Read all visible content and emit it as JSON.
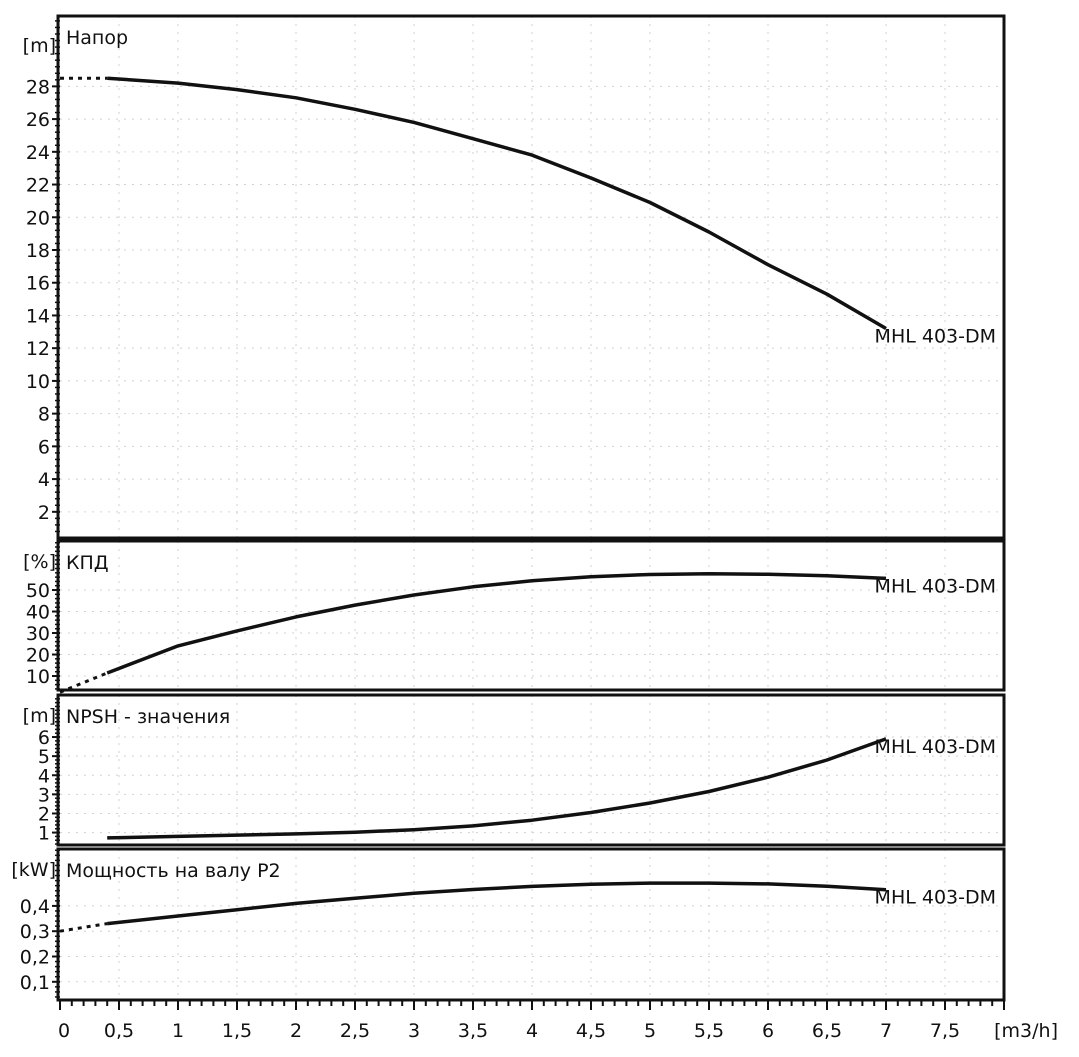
{
  "chart_data": [
    {
      "type": "line",
      "title": "Напор",
      "ylabel": "[m]",
      "ylim": [
        0.4,
        32.3
      ],
      "yticks": [
        2,
        4,
        6,
        8,
        10,
        12,
        14,
        16,
        18,
        20,
        22,
        24,
        26,
        28
      ],
      "series": [
        {
          "name": "MHL 403-DM",
          "x": [
            0.4,
            1,
            1.5,
            2,
            2.5,
            3,
            3.5,
            4,
            4.5,
            5,
            5.5,
            6,
            6.5,
            7
          ],
          "y": [
            28.5,
            28.2,
            27.8,
            27.3,
            26.6,
            25.8,
            24.8,
            23.8,
            22.4,
            20.9,
            19.1,
            17.1,
            15.3,
            13.2
          ]
        },
        {
          "name": "extrapolated",
          "style": "dotted",
          "x": [
            0,
            0.4
          ],
          "y": [
            28.5,
            28.5
          ]
        }
      ],
      "curve_label": "MHL 403-DM"
    },
    {
      "type": "line",
      "title": "КПД",
      "ylabel": "[%]",
      "ylim": [
        3.5,
        72.8
      ],
      "yticks": [
        10,
        20,
        30,
        40,
        50
      ],
      "series": [
        {
          "name": "MHL 403-DM",
          "x": [
            0.4,
            1,
            1.5,
            2,
            2.5,
            3,
            3.5,
            4,
            4.5,
            5,
            5.5,
            6,
            6.5,
            7
          ],
          "y": [
            11.4,
            24,
            31,
            37.5,
            43,
            47.7,
            51.5,
            54.3,
            56.2,
            57.2,
            57.6,
            57.3,
            56.6,
            55.4
          ]
        },
        {
          "name": "extrapolated",
          "style": "dotted",
          "x": [
            0,
            0.4
          ],
          "y": [
            2.5,
            11.4
          ]
        }
      ],
      "curve_label": "MHL 403-DM"
    },
    {
      "type": "line",
      "title": "NPSH - значения",
      "ylabel": "[m]",
      "ylim": [
        0.35,
        8.2
      ],
      "yticks": [
        1,
        2,
        3,
        4,
        5,
        6
      ],
      "series": [
        {
          "name": "MHL 403-DM",
          "x": [
            0.4,
            1,
            1.5,
            2,
            2.5,
            3,
            3.5,
            4,
            4.5,
            5,
            5.5,
            6,
            6.5,
            7
          ],
          "y": [
            0.72,
            0.8,
            0.87,
            0.93,
            1.02,
            1.15,
            1.35,
            1.65,
            2.05,
            2.55,
            3.15,
            3.9,
            4.8,
            5.9
          ]
        }
      ],
      "curve_label": "MHL 403-DM"
    },
    {
      "type": "line",
      "title": "Мощность на валу P2",
      "ylabel": "[kW]",
      "ylim": [
        0.028,
        0.625
      ],
      "yticks": [
        0.1,
        0.2,
        0.3,
        0.4
      ],
      "ytick_labels": [
        "0,1",
        "0,2",
        "0,3",
        "0,4"
      ],
      "series": [
        {
          "name": "MHL 403-DM",
          "x": [
            0.4,
            1,
            1.5,
            2,
            2.5,
            3,
            3.5,
            4,
            4.5,
            5,
            5.5,
            6,
            6.5,
            7
          ],
          "y": [
            0.33,
            0.36,
            0.385,
            0.41,
            0.43,
            0.45,
            0.465,
            0.477,
            0.486,
            0.49,
            0.49,
            0.487,
            0.478,
            0.464
          ]
        },
        {
          "name": "extrapolated",
          "style": "dotted",
          "x": [
            0,
            0.4
          ],
          "y": [
            0.3,
            0.33
          ]
        }
      ],
      "curve_label": "MHL 403-DM"
    }
  ],
  "x_axis": {
    "label": "[m3/h]",
    "xlim": [
      0,
      8
    ],
    "ticks": [
      0,
      0.5,
      1,
      1.5,
      2,
      2.5,
      3,
      3.5,
      4,
      4.5,
      5,
      5.5,
      6,
      6.5,
      7,
      7.5
    ],
    "tick_labels": [
      "0",
      "0,5",
      "1",
      "1,5",
      "2",
      "2,5",
      "3",
      "3,5",
      "4",
      "4,5",
      "5",
      "5,5",
      "6",
      "6,5",
      "7",
      "7,5"
    ]
  }
}
